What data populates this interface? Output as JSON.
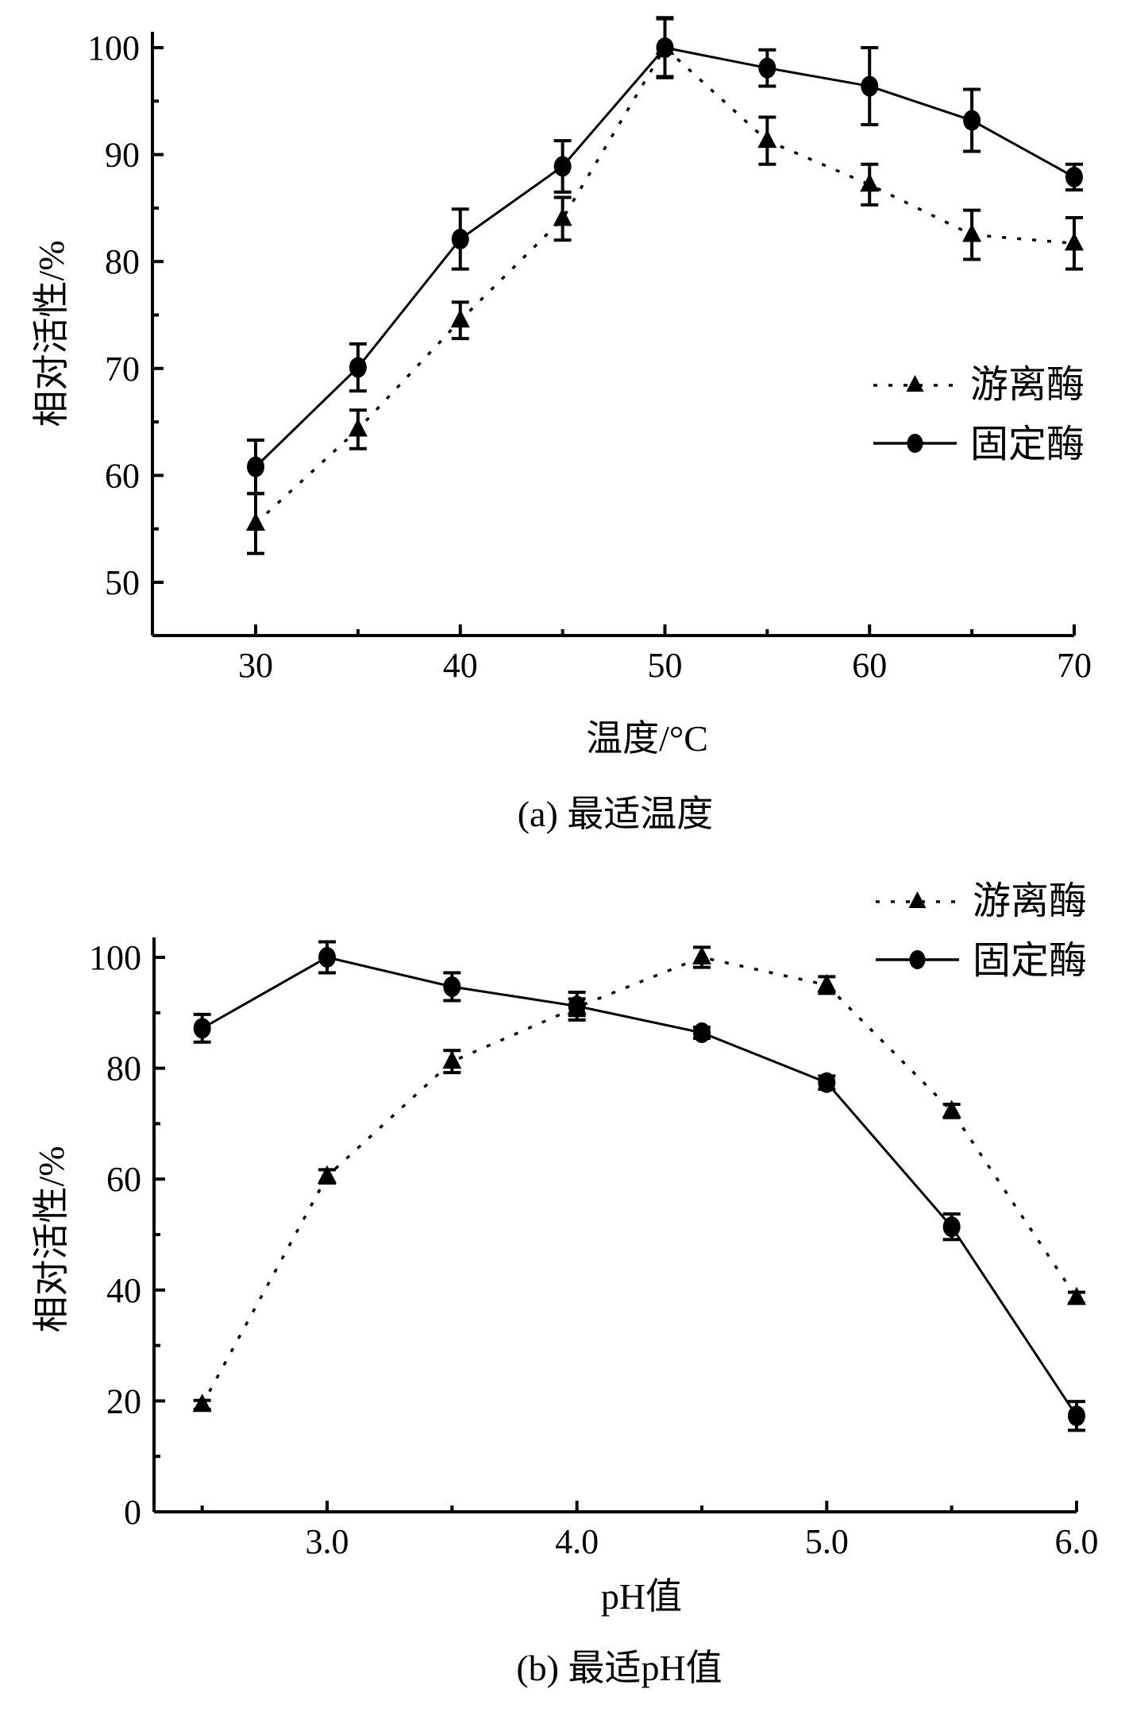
{
  "chart_data": [
    {
      "id": "a",
      "type": "line",
      "caption": "(a) 最适温度",
      "xlabel": "温度/°C",
      "ylabel": "相对活性/%",
      "xlim": [
        25,
        70
      ],
      "ylim": [
        45,
        100
      ],
      "xticks": [
        30,
        40,
        50,
        60,
        70
      ],
      "xtick_labels": [
        "30",
        "40",
        "50",
        "60",
        "70"
      ],
      "yticks": [
        50,
        60,
        70,
        80,
        90,
        100
      ],
      "ytick_labels": [
        "50",
        "60",
        "70",
        "80",
        "90",
        "100"
      ],
      "legend_position": "right-middle",
      "x": [
        30,
        35,
        40,
        45,
        50,
        55,
        60,
        65,
        70
      ],
      "series": [
        {
          "name": "游离酶",
          "marker": "triangle",
          "line": "dotted",
          "values": [
            55.5,
            64.3,
            74.5,
            84.0,
            100.0,
            91.3,
            87.2,
            82.5,
            81.7
          ],
          "errors": [
            2.8,
            1.8,
            1.7,
            2.0,
            2.8,
            2.2,
            1.9,
            2.3,
            2.4
          ]
        },
        {
          "name": "固定酶",
          "marker": "circle",
          "line": "solid",
          "values": [
            60.8,
            70.1,
            82.1,
            88.9,
            100.0,
            98.1,
            96.4,
            93.2,
            87.9
          ],
          "errors": [
            2.5,
            2.2,
            2.8,
            2.4,
            2.7,
            1.7,
            3.6,
            2.9,
            1.2
          ]
        }
      ]
    },
    {
      "id": "b",
      "type": "line",
      "caption": "(b) 最适pH值",
      "xlabel": "pH值",
      "ylabel": "相对活性/%",
      "xlim": [
        2.35,
        6.0
      ],
      "ylim": [
        0,
        100
      ],
      "xticks": [
        3.0,
        4.0,
        5.0,
        6.0
      ],
      "xtick_labels": [
        "3.0",
        "4.0",
        "5.0",
        "6.0"
      ],
      "yticks": [
        0,
        20,
        40,
        60,
        80,
        100
      ],
      "ytick_labels": [
        "0",
        "20",
        "40",
        "60",
        "80",
        "100"
      ],
      "legend_position": "top-right",
      "x": [
        2.5,
        3.0,
        3.5,
        4.0,
        4.5,
        5.0,
        5.5,
        6.0
      ],
      "series": [
        {
          "name": "游离酶",
          "marker": "triangle",
          "line": "dotted",
          "values": [
            19.3,
            60.5,
            81.2,
            91.0,
            100.0,
            95.0,
            72.3,
            38.6
          ],
          "errors": [
            0.8,
            1.2,
            2.0,
            1.5,
            1.8,
            1.5,
            1.2,
            1.0
          ]
        },
        {
          "name": "固定酶",
          "marker": "circle",
          "line": "solid",
          "values": [
            87.2,
            100.0,
            94.7,
            91.2,
            86.4,
            77.4,
            51.4,
            17.3
          ],
          "errors": [
            2.5,
            2.8,
            2.5,
            2.5,
            1.0,
            1.2,
            2.3,
            2.6
          ]
        }
      ]
    }
  ]
}
